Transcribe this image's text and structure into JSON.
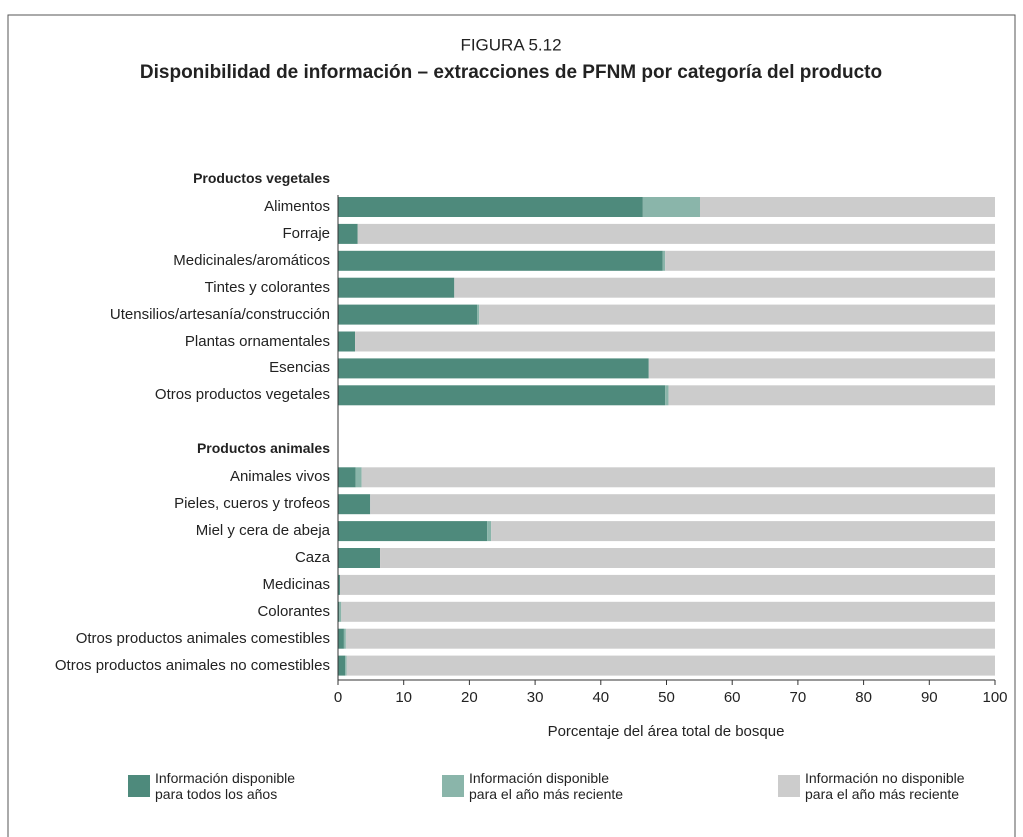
{
  "chart_data": {
    "type": "bar",
    "orientation": "horizontal",
    "stacked": true,
    "figure_label": "FIGURA 5.12",
    "title": "Disponibilidad de información – extracciones de PFNM por categoría del producto",
    "groups": [
      {
        "name": "Productos vegetales",
        "categories": [
          "Alimentos",
          "Forraje",
          "Medicinales/aromáticos",
          "Tintes y colorantes",
          "Utensilios/artesanía/construcción",
          "Plantas ornamentales",
          "Esencias",
          "Otros productos vegetales"
        ]
      },
      {
        "name": "Productos animales",
        "categories": [
          "Animales vivos",
          "Pieles, cueros y trofeos",
          "Miel y cera de abeja",
          "Caza",
          "Medicinas",
          "Colorantes",
          "Otros productos animales comestibles",
          "Otros productos animales no comestibles"
        ]
      }
    ],
    "series": [
      {
        "name": "Información disponible para todos los años",
        "color": "#4e8a7c",
        "values": [
          46.4,
          3.0,
          49.4,
          17.7,
          21.2,
          2.6,
          47.3,
          49.8,
          2.7,
          4.9,
          22.7,
          6.4,
          0.3,
          0.2,
          0.9,
          1.1
        ]
      },
      {
        "name": "Información disponible para el año más reciente",
        "color": "#8ab5aa",
        "values": [
          8.7,
          0,
          0.4,
          0,
          0.3,
          0,
          0,
          0.5,
          0.9,
          0,
          0.6,
          0,
          0,
          0.3,
          0.3,
          0.2
        ]
      },
      {
        "name": "Información no disponible para el año más reciente",
        "color": "#cccccc",
        "values": [
          44.9,
          97.0,
          50.2,
          82.3,
          78.5,
          97.4,
          52.7,
          49.7,
          96.4,
          95.1,
          76.7,
          93.6,
          99.7,
          99.5,
          98.8,
          98.7
        ]
      }
    ],
    "xlabel": "Porcentaje del área total de bosque",
    "xlim": [
      0,
      100
    ],
    "xticks": [
      0,
      10,
      20,
      30,
      40,
      50,
      60,
      70,
      80,
      90,
      100
    ],
    "legend": "bottom"
  }
}
